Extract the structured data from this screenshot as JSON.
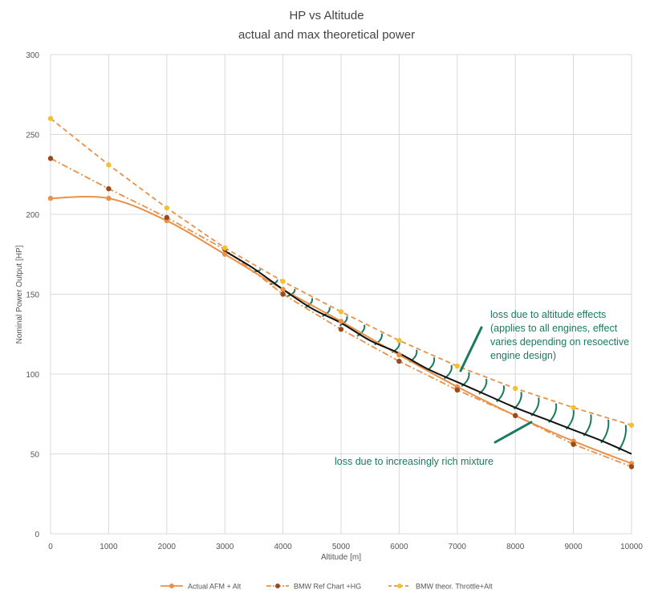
{
  "chart_data": {
    "type": "line",
    "title": "HP vs Altitude",
    "subtitle": "actual and max theoretical power",
    "xlabel": "Altitude [m]",
    "ylabel": "Nominal Power Output [HP]",
    "xlim": [
      0,
      10000
    ],
    "ylim": [
      0,
      300
    ],
    "x_ticks": [
      0,
      1000,
      2000,
      3000,
      4000,
      5000,
      6000,
      7000,
      8000,
      9000,
      10000
    ],
    "y_ticks": [
      0,
      50,
      100,
      150,
      200,
      250,
      300
    ],
    "grid": true,
    "legend_position": "bottom",
    "colors": {
      "actual": "#e8914a",
      "bmw_ref": "#9a4a1c",
      "bmw_ref_line": "#e8914a",
      "bmw_theor_marker": "#f2c12e",
      "bmw_theor_line": "#e8914a",
      "black_curve": "#111111",
      "annotation": "#1a7a5e"
    },
    "series": [
      {
        "key": "actual",
        "name": "Actual AFM + Alt",
        "style": "solid-smooth",
        "x": [
          0,
          1000,
          2000,
          3000,
          4000,
          5000,
          6000,
          7000,
          8000,
          9000,
          10000
        ],
        "y": [
          210,
          210,
          196,
          175,
          153,
          133,
          112,
          92,
          74,
          58,
          44
        ]
      },
      {
        "key": "bmw_ref",
        "name": "BMW Ref Chart +HG",
        "style": "dashdot",
        "x": [
          0,
          1000,
          2000,
          3000,
          4000,
          5000,
          6000,
          7000,
          8000,
          9000,
          10000
        ],
        "y": [
          235,
          216,
          198,
          178,
          150,
          128,
          108,
          90,
          74,
          56,
          42
        ]
      },
      {
        "key": "bmw_theor",
        "name": "BMW theor. Throttle+Alt",
        "style": "dashed",
        "x": [
          0,
          1000,
          2000,
          3000,
          4000,
          5000,
          6000,
          7000,
          8000,
          9000,
          10000
        ],
        "y": [
          260,
          231,
          204,
          179,
          158,
          139,
          121,
          105,
          91,
          79,
          68
        ]
      },
      {
        "key": "black_curve",
        "name": "",
        "style": "solid-black",
        "x": [
          3000,
          3500,
          4000,
          4500,
          5000,
          5500,
          6000,
          6500,
          7000,
          7500,
          8000,
          8500,
          9000,
          9500,
          10000
        ],
        "y": [
          177,
          166,
          153,
          141,
          132,
          121,
          113,
          103,
          95,
          87,
          79,
          72,
          65,
          58,
          50
        ]
      }
    ],
    "annotations": [
      {
        "text_lines": [
          "loss due to altitude effects",
          "(applies to all engines, effect",
          "varies depending on resoective",
          "engine design)"
        ]
      },
      {
        "text_lines": [
          "loss due to increasingly rich mixture"
        ]
      }
    ]
  }
}
